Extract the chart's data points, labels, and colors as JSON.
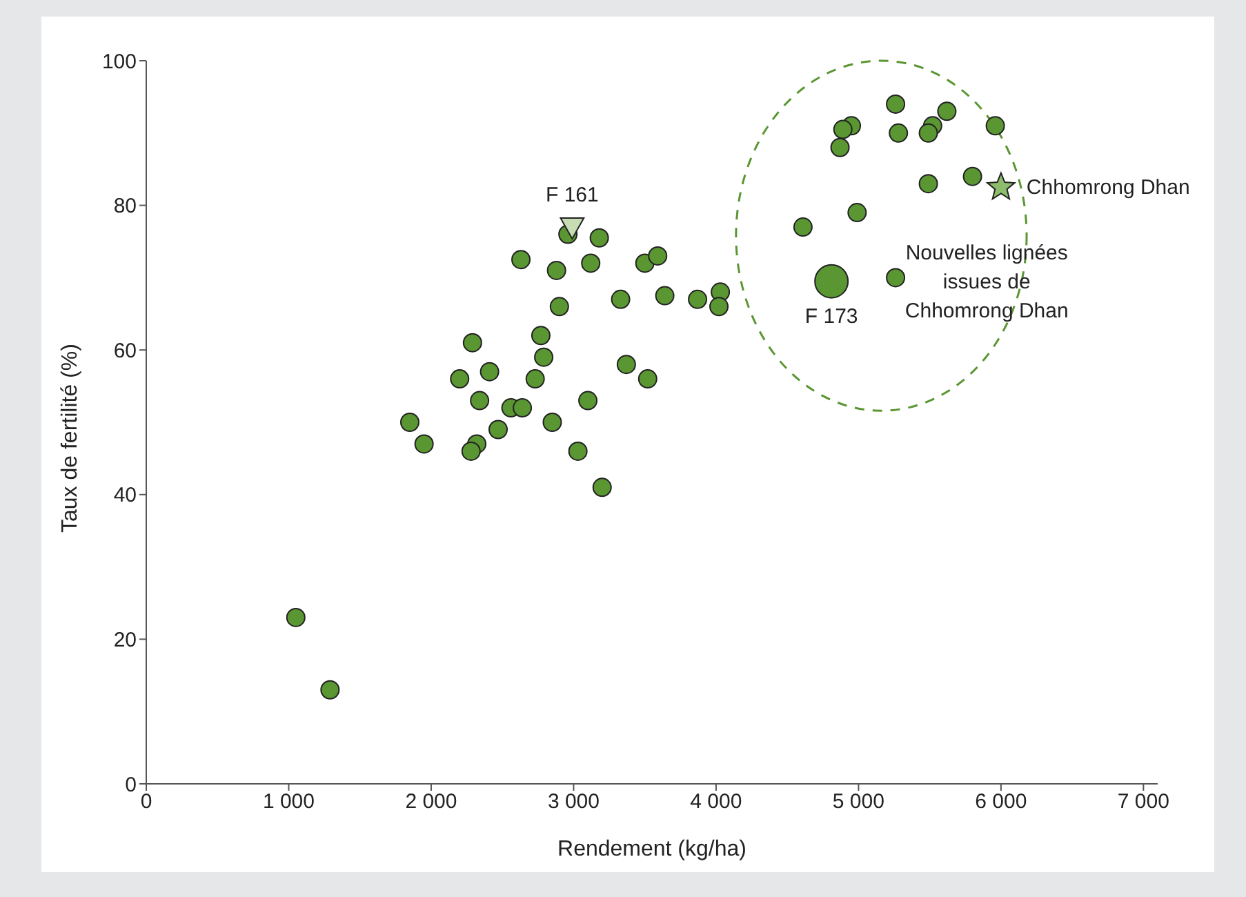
{
  "chart_data": {
    "type": "scatter",
    "xlabel": "Rendement (kg/ha)",
    "ylabel": "Taux de fertilité (%)",
    "xlim": [
      0,
      7100
    ],
    "xticks": [
      0,
      {
        "value": 1000,
        "label": "1 000"
      },
      {
        "value": 2000,
        "label": "2 000"
      },
      {
        "value": 3000,
        "label": "3 000"
      },
      {
        "value": 4000,
        "label": "4 000"
      },
      {
        "value": 5000,
        "label": "5 000"
      },
      {
        "value": 6000,
        "label": "6 000"
      },
      {
        "value": 7000,
        "label": "7 000"
      }
    ],
    "ylim": [
      0,
      100
    ],
    "yticks": [
      0,
      20,
      40,
      60,
      80,
      100
    ],
    "grid": false,
    "series": [
      {
        "color": "#5a9632",
        "marker": "circle",
        "x": [
          1050,
          1290,
          1850,
          1950,
          2290,
          2200,
          2410,
          2340,
          2560,
          2640,
          2320,
          2280,
          2470,
          2630,
          2880,
          2900,
          2770,
          2790,
          2730,
          2850,
          3030,
          3200,
          3100,
          3120,
          3180,
          2960,
          3330,
          3370,
          3520,
          3500,
          3590,
          3640,
          3870,
          4030,
          4020,
          5260,
          5620,
          4950,
          4890,
          4870,
          5280,
          5520,
          5490,
          5960,
          5800,
          5490,
          4990,
          4610,
          5260
        ],
        "values": [
          23,
          13,
          50,
          47,
          61,
          56,
          57,
          53,
          52,
          52,
          47,
          46,
          49,
          72.5,
          71,
          66,
          62,
          59,
          56,
          50,
          46,
          41,
          53,
          72,
          75.5,
          76,
          67,
          58,
          56,
          72,
          73,
          67.5,
          67,
          68,
          66,
          94,
          93,
          91,
          90.5,
          88,
          90,
          91,
          90,
          91,
          84,
          83,
          79,
          77,
          70
        ]
      },
      {
        "name": "F 161",
        "color": "#c8dcb4",
        "marker": "triangle",
        "x": [
          2990
        ],
        "values": [
          77
        ]
      },
      {
        "name": "F 173",
        "type": "bubble",
        "color": "#5a9632",
        "marker": "circle",
        "x": [
          4810
        ],
        "values": [
          69.5
        ],
        "sizes": [
          1
        ]
      },
      {
        "name": "Chhomrong Dhan",
        "color": "#8cbc6c",
        "marker": "star",
        "x": [
          6000
        ],
        "values": [
          82.5
        ]
      }
    ],
    "annotations": [
      "Nouvelles lignées issues de Chhomrong Dhan"
    ]
  }
}
